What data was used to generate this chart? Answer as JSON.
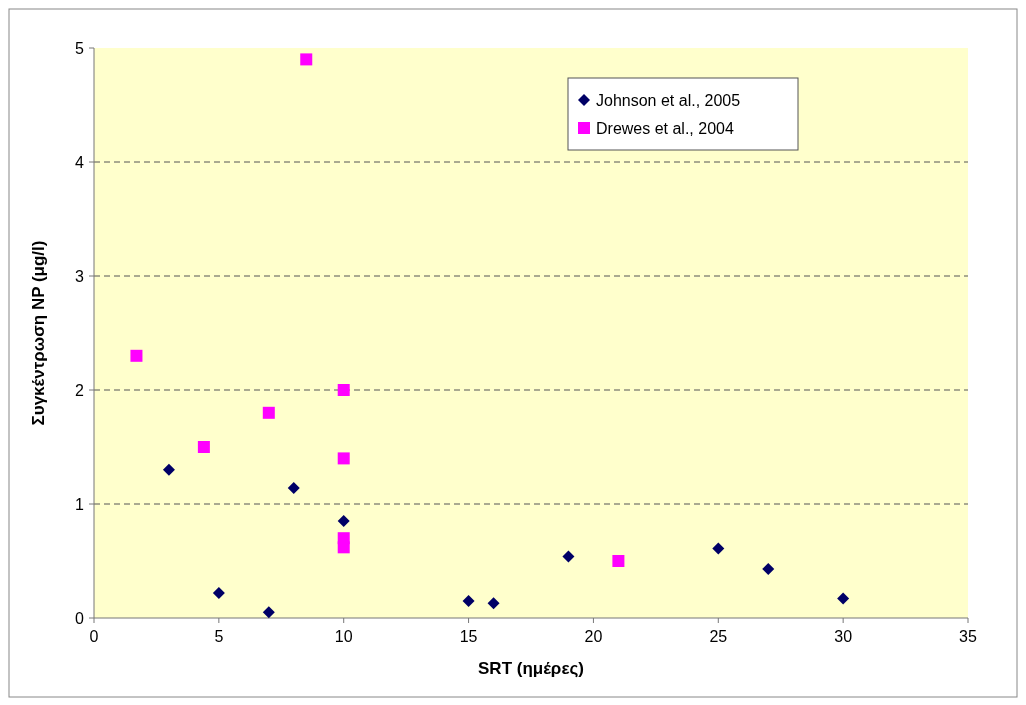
{
  "chart_data": {
    "type": "scatter",
    "xlabel": "SRT (ημέρες)",
    "ylabel": "Συγκέντρωση NP (μg/l)",
    "xlim": [
      0,
      35
    ],
    "xticks": [
      0,
      5,
      10,
      15,
      20,
      25,
      30,
      35
    ],
    "ylim": [
      0,
      5
    ],
    "yticks": [
      0,
      1,
      2,
      3,
      4,
      5
    ],
    "grid": "y",
    "legend": "top right",
    "series": [
      {
        "name": "Johnson et al., 2005",
        "color": "#000066",
        "marker": "diamond",
        "x": [
          3,
          5,
          7,
          8,
          10,
          15,
          16,
          19,
          25,
          27,
          30
        ],
        "values": [
          1.3,
          0.22,
          0.05,
          1.14,
          0.85,
          0.15,
          0.13,
          0.54,
          0.61,
          0.43,
          0.17
        ]
      },
      {
        "name": "Drewes et al., 2004",
        "color": "#ff00ff",
        "marker": "square",
        "x": [
          1.7,
          4.4,
          7,
          8.5,
          10,
          10,
          10,
          10,
          21
        ],
        "values": [
          2.3,
          1.5,
          1.8,
          4.9,
          2.0,
          1.4,
          0.7,
          0.62,
          0.5
        ]
      }
    ]
  }
}
